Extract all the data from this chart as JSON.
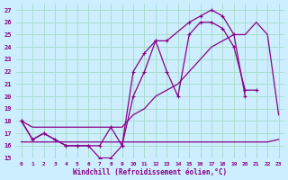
{
  "xlabel": "Windchill (Refroidissement éolien,°C)",
  "background_color": "#cceeff",
  "grid_color": "#aaddcc",
  "line_color": "#880088",
  "xlim": [
    -0.5,
    23.5
  ],
  "ylim": [
    15,
    27.5
  ],
  "yticks": [
    15,
    16,
    17,
    18,
    19,
    20,
    21,
    22,
    23,
    24,
    25,
    26,
    27
  ],
  "xticks": [
    0,
    1,
    2,
    3,
    4,
    5,
    6,
    7,
    8,
    9,
    10,
    11,
    12,
    13,
    14,
    15,
    16,
    17,
    18,
    19,
    20,
    21,
    22,
    23
  ],
  "line_temp_x": [
    0,
    1,
    2,
    3,
    4,
    5,
    6,
    7,
    8,
    9,
    10,
    11,
    12,
    13,
    15,
    16,
    17,
    18,
    19,
    20
  ],
  "line_temp_y": [
    18,
    16.5,
    17,
    16.5,
    16,
    16,
    16,
    15,
    15,
    16,
    22,
    23.5,
    24.5,
    24.5,
    26,
    26.5,
    27,
    26.5,
    25,
    20
  ],
  "line_wc_x": [
    0,
    1,
    2,
    3,
    4,
    5,
    6,
    7,
    8,
    9,
    10,
    11,
    12,
    13,
    14,
    15,
    16,
    17,
    18,
    19,
    20,
    21
  ],
  "line_wc_y": [
    18,
    16.5,
    17,
    16.5,
    16,
    16,
    16,
    16,
    17.5,
    16,
    20,
    22,
    24.5,
    22,
    20,
    25,
    26,
    26,
    25.5,
    24,
    20.5,
    20.5
  ],
  "line_diag_x": [
    0,
    1,
    2,
    3,
    4,
    5,
    6,
    7,
    8,
    9,
    10,
    11,
    12,
    13,
    14,
    15,
    16,
    17,
    18,
    19,
    20,
    21,
    22,
    23
  ],
  "line_diag_y": [
    18,
    17.5,
    17.5,
    17.5,
    17.5,
    17.5,
    17.5,
    17.5,
    17.5,
    17.5,
    18.5,
    19,
    20,
    20.5,
    21,
    22,
    23,
    24,
    24.5,
    25,
    25,
    26,
    25,
    18.5
  ],
  "line_flat_x": [
    0,
    1,
    2,
    3,
    4,
    5,
    6,
    7,
    8,
    9,
    10,
    11,
    12,
    13,
    14,
    15,
    16,
    17,
    18,
    19,
    20,
    21,
    22,
    23
  ],
  "line_flat_y": [
    16.3,
    16.3,
    16.3,
    16.3,
    16.3,
    16.3,
    16.3,
    16.3,
    16.3,
    16.3,
    16.3,
    16.3,
    16.3,
    16.3,
    16.3,
    16.3,
    16.3,
    16.3,
    16.3,
    16.3,
    16.3,
    16.3,
    16.3,
    16.5
  ]
}
